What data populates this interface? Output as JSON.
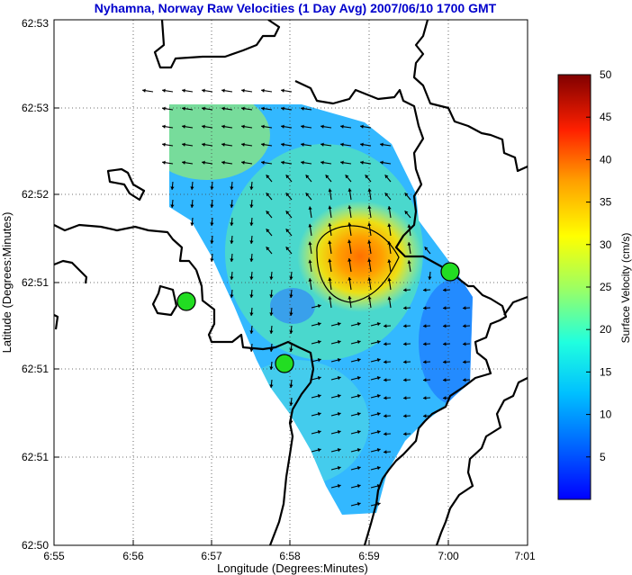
{
  "chart_data": {
    "type": "heatmap",
    "title": "Nyhamna, Norway Raw Velocities (1 Day Avg) 2007/06/10 1700 GMT",
    "xlabel": "Longitude (Degrees:Minutes)",
    "ylabel": "Latitude (Degrees:Minutes)",
    "x_ticks": [
      "6:55",
      "6:56",
      "6:57",
      "6:58",
      "6:59",
      "7:00",
      "7:01"
    ],
    "y_ticks": [
      "62:50",
      "62:51",
      "62:51",
      "62:51",
      "62:52",
      "62:53",
      "62:53"
    ],
    "grid": true,
    "colorbar": {
      "label": "Surface Velocity (cm/s)",
      "range": [
        0,
        50
      ],
      "ticks": [
        "5",
        "10",
        "15",
        "20",
        "25",
        "30",
        "35",
        "40",
        "45",
        "50"
      ],
      "colormap": "jet"
    },
    "station_color": "#22dd22",
    "coast_color": "#000000",
    "title_color": "#0000cc",
    "stations_note": "three radar sites"
  }
}
